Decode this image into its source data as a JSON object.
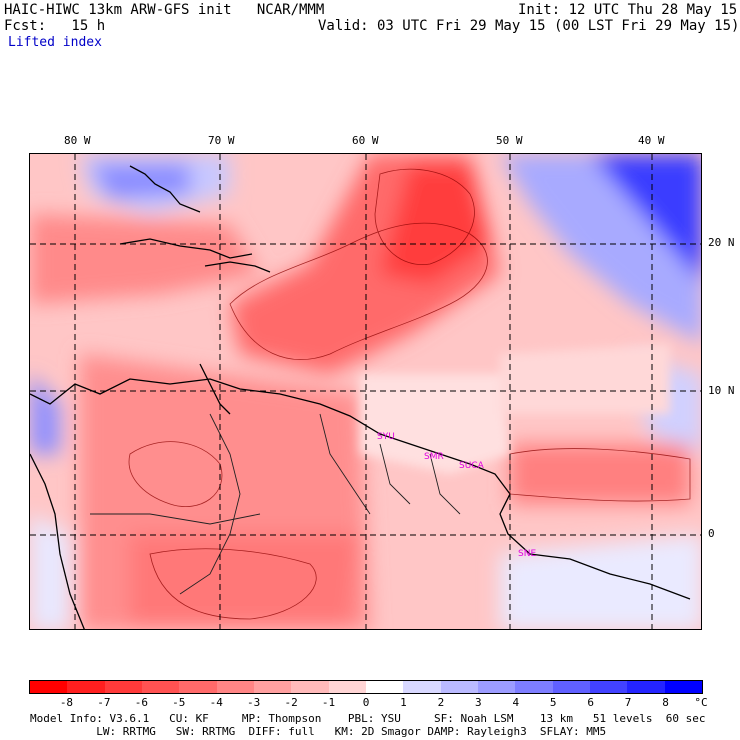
{
  "header": {
    "model_title": "HAIC-HIWC 13km ARW-GFS init   NCAR/MMM",
    "forecast_label": "Fcst:   15 h",
    "init_time": "Init: 12 UTC Thu 28 May 15",
    "valid_time": "Valid: 03 UTC Fri 29 May 15 (00 LST Fri 29 May 15)",
    "field_name": "Lifted index"
  },
  "map": {
    "longitude_labels": [
      "80 W",
      "70 W",
      "60 W",
      "50 W",
      "40 W"
    ],
    "latitude_labels": [
      "20 N",
      "10 N",
      "0"
    ],
    "station_labels": [
      "SYU",
      "SMR",
      "SUCA",
      "SNE"
    ]
  },
  "colorbar": {
    "unit": "°C",
    "tick_labels": [
      "-8",
      "-7",
      "-6",
      "-5",
      "-4",
      "-3",
      "-2",
      "-1",
      "0",
      "1",
      "2",
      "3",
      "4",
      "5",
      "6",
      "7",
      "8"
    ],
    "colors": [
      "#ff0000",
      "#ff1f1f",
      "#ff3a3a",
      "#ff5252",
      "#ff6a6a",
      "#ff8585",
      "#ffa0a0",
      "#ffbaba",
      "#ffd5d5",
      "#ffffff",
      "#d8d8ff",
      "#babaff",
      "#9c9cff",
      "#7e7eff",
      "#6060ff",
      "#4242ff",
      "#2424ff",
      "#0000ff"
    ]
  },
  "footer": {
    "line1": "Model Info: V3.6.1   CU: KF     MP: Thompson    PBL: YSU     SF: Noah LSM    13 km   51 levels  60 sec",
    "line2": "          LW: RRTMG   SW: RRTMG  DIFF: full   KM: 2D Smagor DAMP: Rayleigh3  SFLAY: MM5"
  }
}
